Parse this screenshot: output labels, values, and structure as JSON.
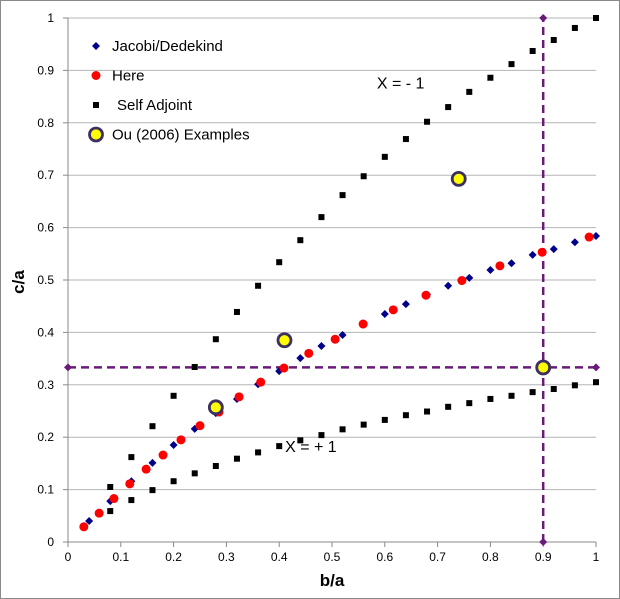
{
  "chart_data": {
    "type": "scatter",
    "title": "",
    "xlabel": "b/a",
    "ylabel": "c/a",
    "xlim": [
      0,
      1
    ],
    "ylim": [
      0,
      1
    ],
    "xticks": [
      "0",
      "0.1",
      "0.2",
      "0.3",
      "0.4",
      "0.5",
      "0.6",
      "0.7",
      "0.8",
      "0.9",
      "1"
    ],
    "yticks": [
      "0",
      "0.1",
      "0.2",
      "0.3",
      "0.4",
      "0.5",
      "0.6",
      "0.7",
      "0.8",
      "0.9",
      "1"
    ],
    "grid": "horizontal",
    "legend_position": "top-left",
    "series": [
      {
        "name": "Jacobi/Dedekind",
        "marker": "diamond",
        "color": "#00008b",
        "x": [
          0.04,
          0.08,
          0.12,
          0.16,
          0.2,
          0.24,
          0.28,
          0.32,
          0.36,
          0.4,
          0.44,
          0.48,
          0.52,
          0.56,
          0.6,
          0.64,
          0.68,
          0.72,
          0.76,
          0.8,
          0.84,
          0.88,
          0.92,
          0.96,
          1.0
        ],
        "y": [
          0.04,
          0.078,
          0.116,
          0.151,
          0.185,
          0.216,
          0.246,
          0.273,
          0.301,
          0.326,
          0.351,
          0.374,
          0.395,
          0.415,
          0.435,
          0.454,
          0.472,
          0.489,
          0.504,
          0.519,
          0.532,
          0.548,
          0.559,
          0.572,
          0.584
        ]
      },
      {
        "name": "Here",
        "marker": "circle",
        "color": "#ff0000",
        "x": [
          0.03,
          0.059,
          0.087,
          0.117,
          0.148,
          0.18,
          0.214,
          0.25,
          0.286,
          0.324,
          0.365,
          0.409,
          0.456,
          0.506,
          0.559,
          0.616,
          0.678,
          0.746,
          0.818,
          0.898,
          0.987
        ],
        "y": [
          0.029,
          0.055,
          0.083,
          0.111,
          0.139,
          0.166,
          0.195,
          0.222,
          0.248,
          0.277,
          0.305,
          0.332,
          0.36,
          0.387,
          0.416,
          0.443,
          0.471,
          0.499,
          0.527,
          0.553,
          0.582
        ]
      },
      {
        "name": "Self Adjoint",
        "marker": "square",
        "color": "#000000",
        "x": [
          0.08,
          0.12,
          0.16,
          0.2,
          0.24,
          0.28,
          0.32,
          0.36,
          0.4,
          0.44,
          0.48,
          0.52,
          0.56,
          0.6,
          0.64,
          0.68,
          0.72,
          0.76,
          0.8,
          0.84,
          0.88,
          0.92,
          0.96,
          1.0,
          0.08,
          0.12,
          0.16,
          0.2,
          0.24,
          0.28,
          0.32,
          0.36,
          0.4,
          0.44,
          0.48,
          0.52,
          0.56,
          0.6,
          0.64,
          0.68,
          0.72,
          0.76,
          0.8,
          0.84,
          0.88,
          0.92,
          0.96,
          1.0
        ],
        "y": [
          0.105,
          0.162,
          0.221,
          0.279,
          0.334,
          0.387,
          0.439,
          0.489,
          0.534,
          0.576,
          0.62,
          0.662,
          0.698,
          0.735,
          0.769,
          0.802,
          0.83,
          0.859,
          0.886,
          0.912,
          0.937,
          0.958,
          0.981,
          1.0,
          0.059,
          0.08,
          0.099,
          0.116,
          0.131,
          0.145,
          0.159,
          0.171,
          0.183,
          0.194,
          0.204,
          0.215,
          0.224,
          0.233,
          0.242,
          0.249,
          0.258,
          0.265,
          0.273,
          0.279,
          0.286,
          0.292,
          0.299,
          0.305
        ]
      },
      {
        "name": "Ou (2006) Examples",
        "marker": "ringed-circle",
        "color": "#ffff00",
        "edge_color": "#3d3060",
        "x": [
          0.28,
          0.41,
          0.74,
          0.9
        ],
        "y": [
          0.257,
          0.385,
          0.693,
          0.333
        ]
      }
    ],
    "reference_lines": [
      {
        "type": "horizontal",
        "y": 0.3333,
        "x": [
          0,
          1
        ],
        "color": "#6a1b7a",
        "style": "dashed",
        "marker": "diamond"
      },
      {
        "type": "vertical",
        "x": 0.9,
        "y": [
          0,
          1
        ],
        "color": "#6a1b7a",
        "style": "dashed",
        "marker": "diamond"
      }
    ],
    "annotations": [
      {
        "text": "X = - 1",
        "x": 0.63,
        "y": 0.865
      },
      {
        "text": "X = + 1",
        "x": 0.46,
        "y": 0.172
      }
    ]
  }
}
